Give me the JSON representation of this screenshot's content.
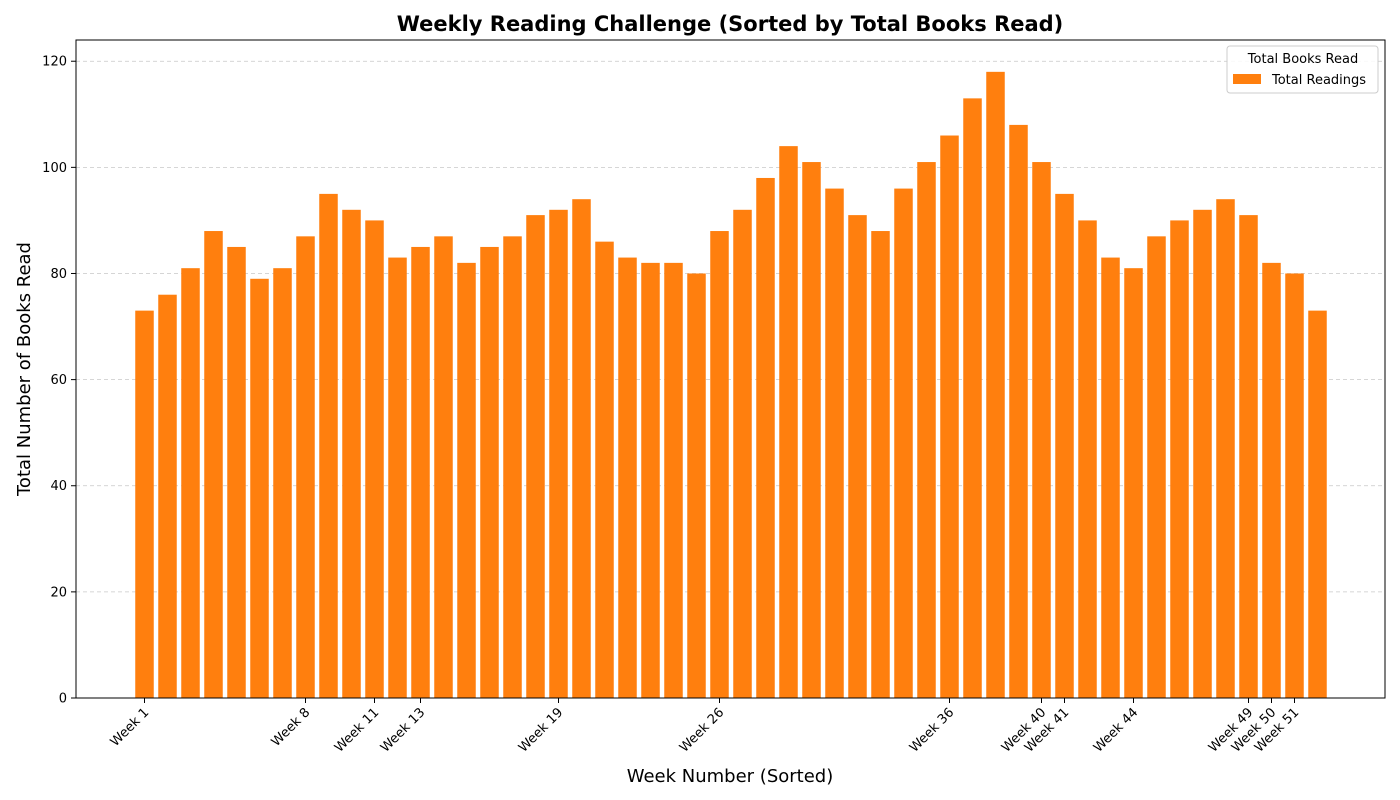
{
  "chart_data": {
    "type": "bar",
    "title": "Weekly Reading Challenge (Sorted by Total Books Read)",
    "xlabel": "Week Number (Sorted)",
    "ylabel": "Total Number of Books Read",
    "ylim": [
      0,
      124
    ],
    "yticks": [
      0,
      20,
      40,
      60,
      80,
      100,
      120
    ],
    "grid": "y-dashed",
    "bar_color": "#ff7f0e",
    "legend": {
      "title": "Total Books Read",
      "position": "top-right",
      "entries": [
        "Total Readings"
      ]
    },
    "series": [
      {
        "name": "Total Readings",
        "values": [
          73,
          76,
          81,
          88,
          85,
          79,
          81,
          87,
          95,
          92,
          90,
          83,
          85,
          87,
          82,
          85,
          87,
          91,
          92,
          94,
          86,
          83,
          82,
          82,
          80,
          88,
          92,
          98,
          104,
          101,
          96,
          91,
          88,
          96,
          101,
          106,
          113,
          118,
          108,
          101,
          95,
          90,
          83,
          81,
          87,
          90,
          92,
          94,
          91,
          82,
          80,
          73
        ]
      }
    ],
    "xticks": [
      {
        "index": 0,
        "label": "Week 1"
      },
      {
        "index": 7,
        "label": "Week 8"
      },
      {
        "index": 10,
        "label": "Week 11"
      },
      {
        "index": 12,
        "label": "Week 13"
      },
      {
        "index": 18,
        "label": "Week 19"
      },
      {
        "index": 25,
        "label": "Week 26"
      },
      {
        "index": 35,
        "label": "Week 36"
      },
      {
        "index": 39,
        "label": "Week 40"
      },
      {
        "index": 40,
        "label": "Week 41"
      },
      {
        "index": 43,
        "label": "Week 44"
      },
      {
        "index": 48,
        "label": "Week 49"
      },
      {
        "index": 49,
        "label": "Week 50"
      },
      {
        "index": 50,
        "label": "Week 51"
      }
    ]
  }
}
